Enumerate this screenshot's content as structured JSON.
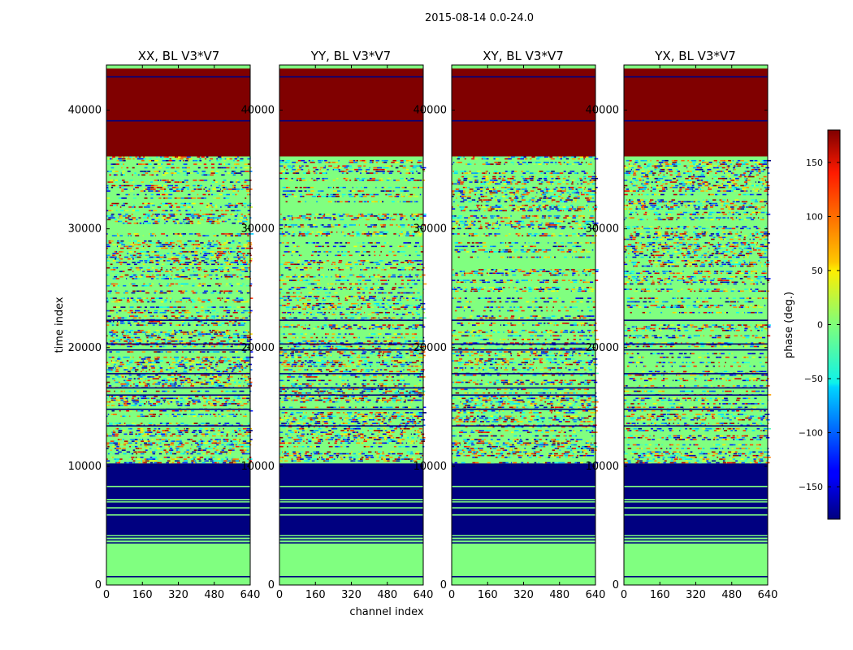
{
  "figure": {
    "suptitle": "2015-08-14 0.0-24.0"
  },
  "chart_data": {
    "type": "heatmap",
    "colormap": "jet",
    "xlabel": "channel index",
    "ylabel": "time index",
    "x_ticks": [
      0,
      160,
      320,
      480,
      640
    ],
    "y_ticks": [
      0,
      10000,
      20000,
      30000,
      40000
    ],
    "xlim": [
      0,
      640
    ],
    "ylim": [
      0,
      43800
    ],
    "panels": [
      {
        "title": "XX, BL V3*V7"
      },
      {
        "title": "YY, BL V3*V7"
      },
      {
        "title": "XY, BL V3*V7"
      },
      {
        "title": "YX, BL V3*V7"
      }
    ],
    "colorbar": {
      "label": "phase (deg.)",
      "range": [
        -180,
        180
      ],
      "ticks": [
        -150,
        -100,
        -50,
        0,
        50,
        100,
        150
      ],
      "tick_labels": [
        "−150",
        "−100",
        "−50",
        "0",
        "50",
        "100",
        "150"
      ]
    },
    "regions": [
      {
        "range": [
          0,
          3500
        ],
        "kind": "flat",
        "phase": 0
      },
      {
        "range": [
          4200,
          10250
        ],
        "kind": "flat",
        "phase": -180
      },
      {
        "range": [
          10250,
          36100
        ],
        "kind": "mixed",
        "base_phase": 0
      },
      {
        "range": [
          36100,
          43500
        ],
        "kind": "flat",
        "phase": 180
      }
    ],
    "horizontal_lines": [
      {
        "t": 700,
        "phase": -180
      },
      {
        "t": 3550,
        "phase": -180
      },
      {
        "t": 3800,
        "phase": -180
      },
      {
        "t": 4050,
        "phase": -180
      },
      {
        "t": 5900,
        "phase": 0
      },
      {
        "t": 6500,
        "phase": 0
      },
      {
        "t": 7000,
        "phase": 0
      },
      {
        "t": 7200,
        "phase": 0
      },
      {
        "t": 8300,
        "phase": 0
      },
      {
        "t": 13400,
        "phase": -180
      },
      {
        "t": 14800,
        "phase": -180
      },
      {
        "t": 16000,
        "phase": -180
      },
      {
        "t": 16600,
        "phase": -180
      },
      {
        "t": 17800,
        "phase": -180
      },
      {
        "t": 19800,
        "phase": -180
      },
      {
        "t": 20300,
        "phase": -180
      },
      {
        "t": 22300,
        "phase": -180
      },
      {
        "t": 39100,
        "phase": -180
      },
      {
        "t": 42800,
        "phase": -180
      },
      {
        "t": 43600,
        "phase": 0
      }
    ]
  }
}
